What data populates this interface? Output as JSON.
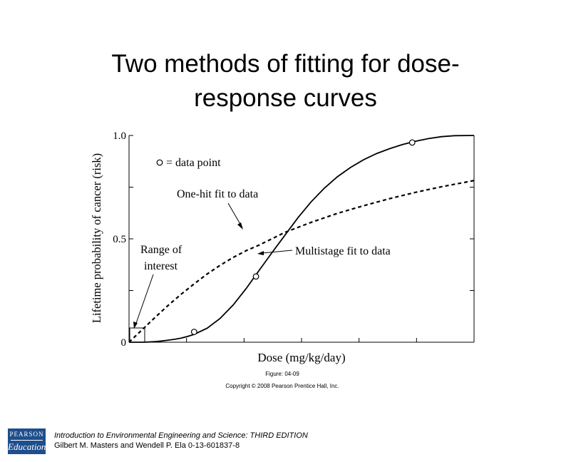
{
  "slide": {
    "title_line1": "Two methods of fitting for dose-",
    "title_line2": "response curves"
  },
  "chart_data": {
    "type": "line",
    "xlabel": "Dose (mg/kg/day)",
    "ylabel": "Lifetime probability of cancer (risk)",
    "ylim": [
      0,
      1.0
    ],
    "y_ticks": [
      {
        "value": 0,
        "label": "0"
      },
      {
        "value": 0.5,
        "label": "0.5"
      },
      {
        "value": 1.0,
        "label": "1.0"
      }
    ],
    "grid": false,
    "series": [
      {
        "name": "Multistage fit to data",
        "style": "solid",
        "x": [
          0,
          0.1,
          0.2,
          0.3,
          0.4,
          0.5,
          0.6,
          0.7,
          0.8,
          0.9,
          1.0,
          1.2,
          1.4,
          1.6,
          1.8,
          2.0,
          2.2,
          2.4,
          2.6,
          2.8,
          3.0,
          3.2,
          3.4,
          3.6,
          3.8,
          4.0,
          4.2,
          4.4,
          4.6,
          4.8,
          5.0,
          5.3
        ],
        "y": [
          0,
          0,
          0,
          0.001,
          0.003,
          0.006,
          0.01,
          0.014,
          0.02,
          0.028,
          0.038,
          0.068,
          0.115,
          0.18,
          0.26,
          0.348,
          0.435,
          0.52,
          0.604,
          0.68,
          0.745,
          0.8,
          0.845,
          0.882,
          0.912,
          0.936,
          0.956,
          0.972,
          0.985,
          0.994,
          0.999,
          1.0
        ]
      },
      {
        "name": "One-hit fit to data",
        "style": "dashed",
        "x": [
          0,
          0.2,
          0.4,
          0.6,
          0.8,
          1.0,
          1.2,
          1.4,
          1.6,
          1.8,
          2.0,
          2.4,
          2.8,
          3.2,
          3.6,
          4.0,
          4.4,
          4.8,
          5.2,
          5.3
        ],
        "y": [
          0,
          0.06,
          0.12,
          0.178,
          0.232,
          0.282,
          0.33,
          0.372,
          0.41,
          0.443,
          0.47,
          0.532,
          0.58,
          0.623,
          0.66,
          0.694,
          0.725,
          0.752,
          0.776,
          0.782
        ]
      }
    ],
    "data_points": [
      {
        "x": 1.0,
        "y": 0.05
      },
      {
        "x": 1.95,
        "y": 0.318
      },
      {
        "x": 4.35,
        "y": 0.966
      }
    ],
    "annotations": {
      "legend": "= data point",
      "one_hit": "One-hit fit to data",
      "multistage": "Multistage fit to data",
      "range_line1": "Range of",
      "range_line2": "interest"
    },
    "figure_caption": "Figure: 04-09",
    "copyright": "Copyright © 2008 Pearson Prentice Hall, Inc."
  },
  "footer": {
    "logo_top": "PEARSON",
    "logo_bottom": "Education",
    "book_title": "Introduction to Environmental Engineering and Science: THIRD EDITION",
    "authors": "Gilbert M. Masters and Wendell P. Ela 0-13-601837-8"
  }
}
